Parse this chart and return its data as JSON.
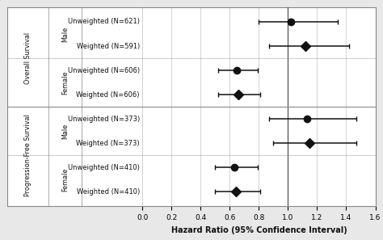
{
  "rows": [
    {
      "label": "Unweighted (N=621)",
      "hr": 1.02,
      "ci_low": 0.8,
      "ci_high": 1.34,
      "marker": "o",
      "section": "Overall Survival",
      "sex": "Male"
    },
    {
      "label": "Weighted (N=591)",
      "hr": 1.12,
      "ci_low": 0.87,
      "ci_high": 1.42,
      "marker": "D",
      "section": "Overall Survival",
      "sex": "Male"
    },
    {
      "label": "Unweighted (N=606)",
      "hr": 0.65,
      "ci_low": 0.52,
      "ci_high": 0.79,
      "marker": "o",
      "section": "Overall Survival",
      "sex": "Female"
    },
    {
      "label": "Weighted (N=606)",
      "hr": 0.66,
      "ci_low": 0.52,
      "ci_high": 0.81,
      "marker": "D",
      "section": "Overall Survival",
      "sex": "Female"
    },
    {
      "label": "Unweighted (N=373)",
      "hr": 1.13,
      "ci_low": 0.87,
      "ci_high": 1.47,
      "marker": "o",
      "section": "Progression-Free Survival",
      "sex": "Male"
    },
    {
      "label": "Weighted (N=373)",
      "hr": 1.15,
      "ci_low": 0.9,
      "ci_high": 1.47,
      "marker": "D",
      "section": "Progression-Free Survival",
      "sex": "Male"
    },
    {
      "label": "Unweighted (N=410)",
      "hr": 0.63,
      "ci_low": 0.5,
      "ci_high": 0.79,
      "marker": "o",
      "section": "Progression-Free Survival",
      "sex": "Female"
    },
    {
      "label": "Weighted (N=410)",
      "hr": 0.64,
      "ci_low": 0.5,
      "ci_high": 0.81,
      "marker": "D",
      "section": "Progression-Free Survival",
      "sex": "Female"
    }
  ],
  "xlim": [
    0.0,
    1.6
  ],
  "xticks": [
    0.0,
    0.2,
    0.4,
    0.6,
    0.8,
    1.0,
    1.2,
    1.4,
    1.6
  ],
  "xlabel": "Hazard Ratio (95% Confidence Interval)",
  "ref_line": 1.0,
  "bg_color": "#e8e8e8",
  "plot_bg": "#ffffff",
  "marker_color": "#111111",
  "marker_size": 6,
  "elinewidth": 1.1,
  "capsize": 2.5,
  "border_color": "#888888",
  "grid_color": "#cccccc",
  "font_color": "#111111",
  "row_label_fontsize": 6.0,
  "sex_label_fontsize": 5.8,
  "section_label_fontsize": 5.8,
  "xlabel_fontsize": 7.0,
  "xtick_fontsize": 6.5
}
